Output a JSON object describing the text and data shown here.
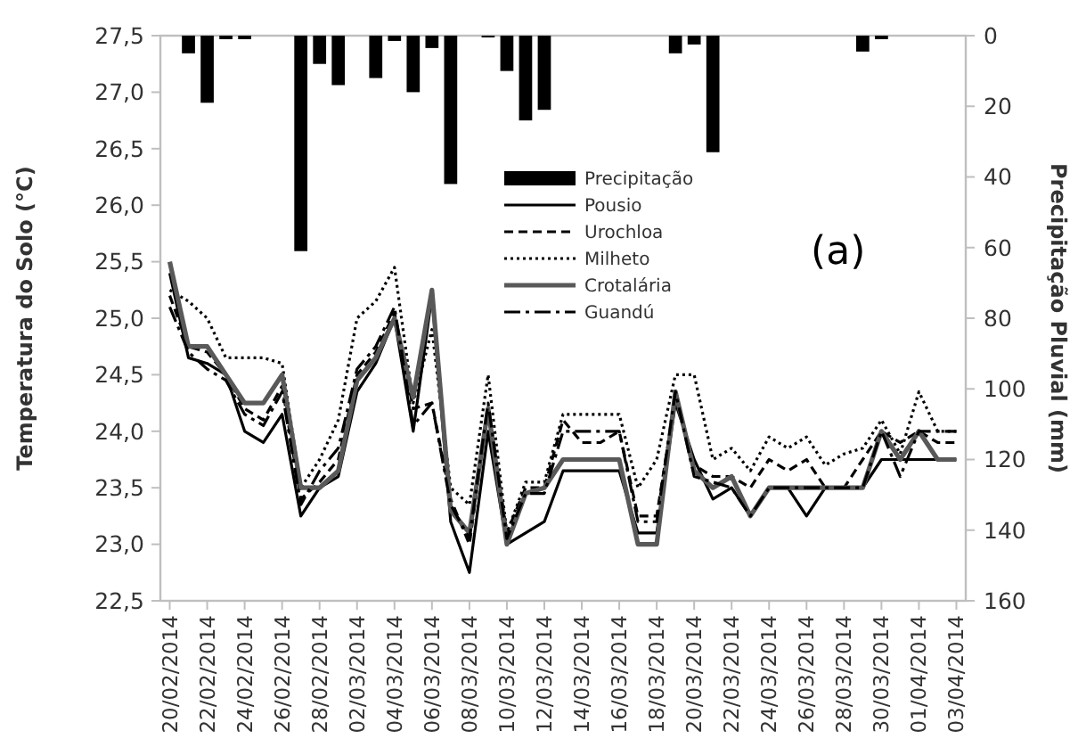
{
  "chart_data": {
    "type": "line",
    "ylabel": "Temperatura do Solo (°C)",
    "y2label": "Precipitação Pluvial (mm)",
    "categories": [
      "20/02/2014",
      null,
      "22/02/2014",
      null,
      "24/02/2014",
      null,
      "26/02/2014",
      null,
      "28/02/2014",
      null,
      "02/03/2014",
      null,
      "04/03/2014",
      null,
      "06/03/2014",
      null,
      "08/03/2014",
      null,
      "10/03/2014",
      null,
      "12/03/2014",
      null,
      "14/03/2014",
      null,
      "16/03/2014",
      null,
      "18/03/2014",
      null,
      "20/03/2014",
      null,
      "22/03/2014",
      null,
      "24/03/2014",
      null,
      "26/03/2014",
      null,
      "28/03/2014",
      null,
      "30/03/2014",
      null,
      "01/04/2014",
      null,
      "03/04/2014"
    ],
    "ylim": [
      22.5,
      27.5
    ],
    "yticks": [
      {
        "value": 22.5,
        "label": "22,5"
      },
      {
        "value": 23,
        "label": "23,0"
      },
      {
        "value": 23.5,
        "label": "23,5"
      },
      {
        "value": 24,
        "label": "24,0"
      },
      {
        "value": 24.5,
        "label": "24,5"
      },
      {
        "value": 25,
        "label": "25,0"
      },
      {
        "value": 25.5,
        "label": "25,5"
      },
      {
        "value": 26,
        "label": "26,0"
      },
      {
        "value": 26.5,
        "label": "26,5"
      },
      {
        "value": 27,
        "label": "27,0"
      },
      {
        "value": 27.5,
        "label": "27,5"
      }
    ],
    "y2lim": [
      160,
      0
    ],
    "y2ticks": [
      0,
      20,
      40,
      60,
      80,
      100,
      120,
      140,
      160
    ],
    "legend": "center",
    "grid": false,
    "marker": "none",
    "annotations": [
      "(a)"
    ],
    "series": [
      {
        "name": "Precipitação",
        "type": "bar",
        "axis": "y2",
        "color": "#000000",
        "values": [
          null,
          5,
          19,
          1,
          1,
          null,
          null,
          61,
          8,
          14,
          null,
          12,
          1.5,
          16,
          3.5,
          42,
          null,
          0.5,
          10,
          24,
          21,
          null,
          null,
          null,
          null,
          null,
          null,
          5,
          2.5,
          33,
          null,
          null,
          null,
          null,
          null,
          null,
          null,
          4.5,
          1,
          null,
          null,
          null,
          null
        ]
      },
      {
        "name": "Pousio",
        "color": "#000000",
        "line_style": "solid",
        "values": [
          25.4,
          24.65,
          24.6,
          24.5,
          24.0,
          23.9,
          24.15,
          23.25,
          23.5,
          23.6,
          24.35,
          24.6,
          25.0,
          24.0,
          25.2,
          23.2,
          22.75,
          24.0,
          23.0,
          23.1,
          23.2,
          23.65,
          23.65,
          23.65,
          23.65,
          23.1,
          23.1,
          24.25,
          23.75,
          23.4,
          23.5,
          23.25,
          23.5,
          23.5,
          23.25,
          23.5,
          23.5,
          23.5,
          23.75,
          23.75,
          23.75,
          23.75,
          23.75
        ]
      },
      {
        "name": "Urochloa",
        "color": "#000000",
        "line_style": "dashed",
        "values": [
          25.2,
          24.75,
          24.7,
          24.5,
          24.2,
          24.1,
          24.4,
          23.4,
          23.55,
          23.75,
          24.5,
          24.7,
          25.05,
          24.2,
          24.25,
          23.4,
          23.0,
          24.2,
          23.1,
          23.5,
          23.5,
          24.1,
          23.9,
          23.9,
          24.0,
          23.25,
          23.25,
          24.3,
          23.7,
          23.6,
          23.6,
          23.5,
          23.75,
          23.65,
          23.75,
          23.5,
          23.5,
          23.75,
          24.0,
          23.9,
          24.0,
          23.9,
          23.9
        ]
      },
      {
        "name": "Milheto",
        "color": "#000000",
        "line_style": "dotted",
        "values": [
          25.25,
          25.15,
          25.0,
          24.65,
          24.65,
          24.65,
          24.6,
          23.5,
          23.75,
          24.1,
          25.0,
          25.15,
          25.45,
          24.25,
          24.9,
          23.5,
          23.35,
          24.5,
          23.1,
          23.55,
          23.55,
          24.15,
          24.15,
          24.15,
          24.15,
          23.5,
          23.75,
          24.5,
          24.5,
          23.75,
          23.85,
          23.65,
          23.95,
          23.85,
          23.95,
          23.7,
          23.8,
          23.85,
          24.1,
          23.8,
          24.35,
          24.0,
          24.0
        ]
      },
      {
        "name": "Crotalária",
        "color": "#595959",
        "line_style": "solid",
        "values": [
          25.5,
          24.75,
          24.75,
          24.5,
          24.25,
          24.25,
          24.5,
          23.5,
          23.5,
          23.65,
          24.45,
          24.65,
          25.0,
          24.3,
          25.25,
          23.3,
          23.1,
          24.2,
          23.0,
          23.45,
          23.5,
          23.75,
          23.75,
          23.75,
          23.75,
          23.0,
          23.0,
          24.35,
          23.65,
          23.5,
          23.6,
          23.25,
          23.5,
          23.5,
          23.5,
          23.5,
          23.5,
          23.5,
          24.0,
          23.75,
          24.0,
          23.75,
          23.75
        ]
      },
      {
        "name": "Guandú",
        "color": "#000000",
        "line_style": "dashdot",
        "values": [
          25.1,
          24.7,
          24.55,
          24.45,
          24.15,
          24.05,
          24.35,
          23.35,
          23.65,
          23.85,
          24.55,
          24.75,
          25.1,
          24.05,
          24.25,
          23.35,
          23.05,
          24.25,
          23.05,
          23.45,
          23.45,
          24.0,
          24.0,
          24.0,
          24.0,
          23.2,
          23.2,
          24.35,
          23.6,
          23.55,
          23.5,
          23.25,
          23.5,
          23.5,
          23.5,
          23.5,
          23.5,
          23.5,
          24.0,
          23.6,
          24.0,
          24.0,
          24.0
        ]
      }
    ]
  }
}
